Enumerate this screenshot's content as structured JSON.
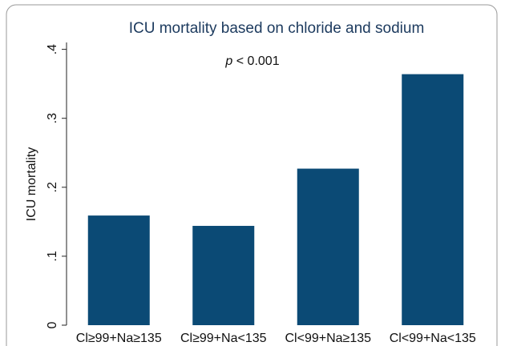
{
  "chart_data": {
    "type": "bar",
    "title": "ICU mortality based on chloride and sodium",
    "annotation": [
      "p",
      "< 0.001"
    ],
    "y_label": "ICU mortality",
    "categories": [
      "Cl≥99+Na≥135",
      "Cl≥99+Na<135",
      "Cl<99+Na≥135",
      "Cl<99+Na<135"
    ],
    "values": [
      0.159,
      0.144,
      0.227,
      0.364
    ],
    "color": "#0b4a75",
    "ylim": [
      0,
      0.41
    ],
    "yticks": [
      0,
      {
        "value": 0.1,
        "label": ".1"
      },
      {
        "value": 0.2,
        "label": ".2"
      },
      {
        "value": 0.3,
        "label": ".3"
      },
      {
        "value": 0.4,
        "label": ".4"
      }
    ],
    "grid": false
  }
}
